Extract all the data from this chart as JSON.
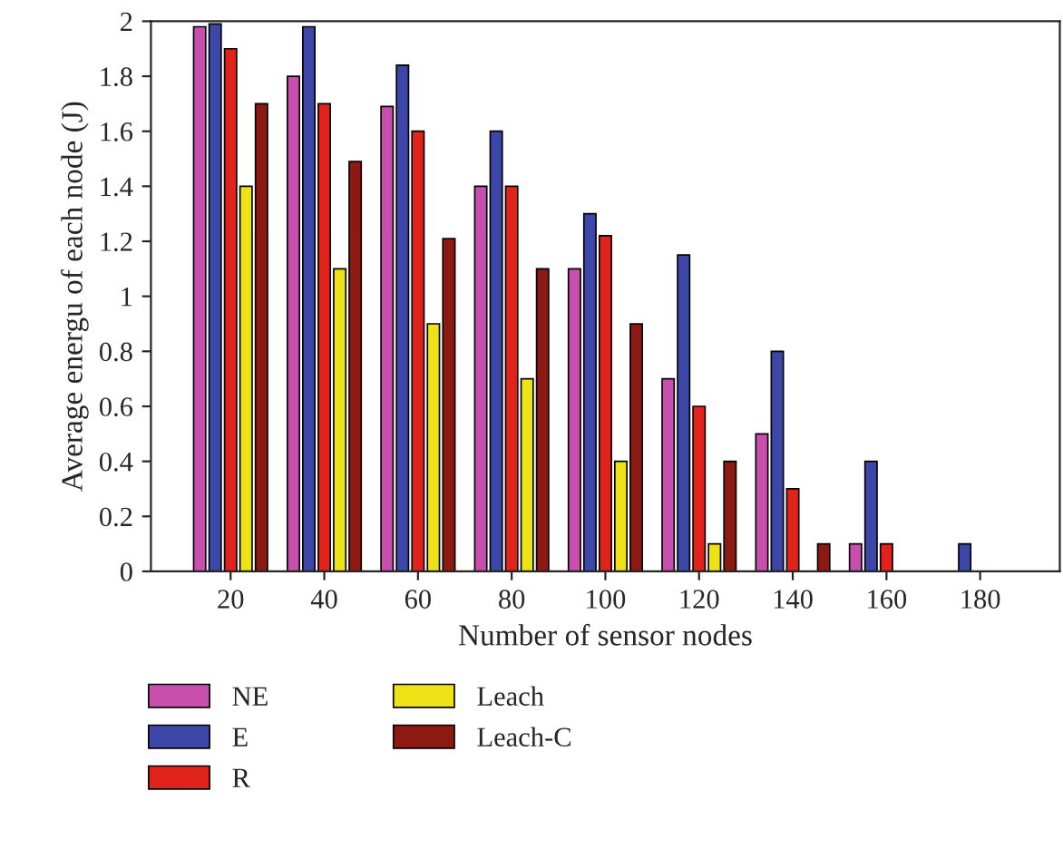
{
  "chart_data": {
    "type": "bar",
    "xlabel": "Number of sensor nodes",
    "ylabel": "Average energu of each node (J)",
    "categories": [
      "20",
      "40",
      "60",
      "80",
      "100",
      "120",
      "140",
      "160",
      "180"
    ],
    "series": [
      {
        "name": "NE",
        "color": "#c84fae",
        "values": [
          1.98,
          1.8,
          1.69,
          1.4,
          1.1,
          0.7,
          0.5,
          0.1,
          null
        ]
      },
      {
        "name": "E",
        "color": "#3c47a8",
        "values": [
          1.99,
          1.98,
          1.84,
          1.6,
          1.3,
          1.15,
          0.8,
          0.4,
          0.1
        ]
      },
      {
        "name": "R",
        "color": "#e2231b",
        "values": [
          1.9,
          1.7,
          1.6,
          1.4,
          1.22,
          0.6,
          0.3,
          0.1,
          null
        ]
      },
      {
        "name": "Leach",
        "color": "#ece215",
        "values": [
          1.4,
          1.1,
          0.9,
          0.7,
          0.4,
          0.1,
          null,
          null,
          null
        ]
      },
      {
        "name": "Leach-C",
        "color": "#8c1a12",
        "values": [
          1.7,
          1.49,
          1.21,
          1.1,
          0.9,
          0.4,
          0.1,
          null,
          null
        ]
      }
    ],
    "ylim": [
      0,
      2
    ],
    "yticks": [
      0,
      0.2,
      0.4,
      0.6,
      0.8,
      1,
      1.2,
      1.4,
      1.6,
      1.8,
      2
    ],
    "legend": "bottom",
    "grid": false
  }
}
